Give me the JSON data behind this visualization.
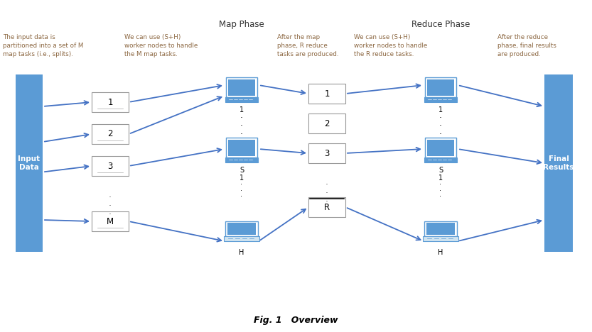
{
  "title": "Fig. 1   Overview",
  "bg_color": "#ffffff",
  "blue_bar": "#5B9BD5",
  "blue_monitor": "#5B9BD5",
  "blue_laptop_screen": "#4472C4",
  "blue_laptop_base": "#5B9BD5",
  "blue_arrow": "#4472C4",
  "text_color": "#8B6640",
  "black": "#000000",
  "gray_box": "#888888",
  "map_phase_label": "Map Phase",
  "reduce_phase_label": "Reduce Phase",
  "input_label": "Input\nData",
  "final_label": "Final\nResults",
  "desc1": "The input data is\npartitioned into a set of M\nmap tasks (i.e., splits).",
  "desc2": "We can use (S+H)\nworker nodes to handle\nthe M map tasks.",
  "desc3": "After the map\nphase, R reduce\ntasks are produced.",
  "desc4": "We can use (S+H)\nworker nodes to handle\nthe R reduce tasks.",
  "desc5": "After the reduce\nphase, final results\nare produced.",
  "caption": "Fig. 1   Overview"
}
